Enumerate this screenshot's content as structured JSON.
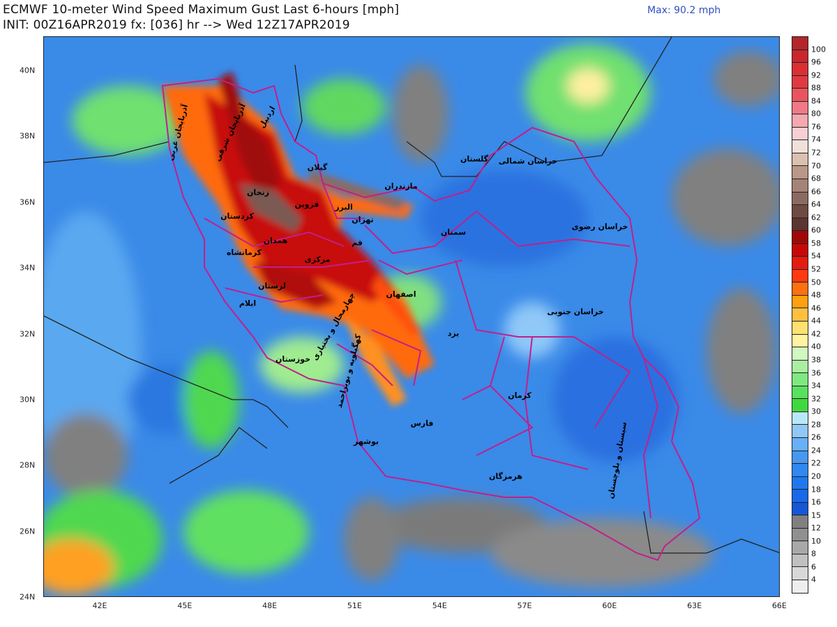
{
  "header": {
    "title": "ECMWF 10-meter Wind Speed Maximum Gust Last 6-hours [mph]",
    "subtitle": "INIT: 00Z16APR2019 fx: [036] hr --> Wed 12Z17APR2019",
    "max_label": "Max: 90.2 mph"
  },
  "map": {
    "type": "contour-fill",
    "variable": "10-meter wind speed maximum gust",
    "units": "mph",
    "region": "Iran",
    "lat_labels": [
      "40N",
      "38N",
      "36N",
      "34N",
      "32N",
      "30N",
      "28N",
      "26N",
      "24N"
    ],
    "lon_labels": [
      "42E",
      "45E",
      "48E",
      "51E",
      "54E",
      "57E",
      "60E",
      "63E",
      "66E"
    ],
    "provinces": [
      {
        "name": "آذربایجان غربی"
      },
      {
        "name": "آذربایجان شرقی"
      },
      {
        "name": "اردبیل"
      },
      {
        "name": "گیلان"
      },
      {
        "name": "زنجان"
      },
      {
        "name": "قزوین"
      },
      {
        "name": "مازندران"
      },
      {
        "name": "البرز"
      },
      {
        "name": "تهران"
      },
      {
        "name": "قم"
      },
      {
        "name": "کردستان"
      },
      {
        "name": "همدان"
      },
      {
        "name": "کرمانشاه"
      },
      {
        "name": "مرکزی"
      },
      {
        "name": "لرستان"
      },
      {
        "name": "ایلام"
      },
      {
        "name": "اصفهان"
      },
      {
        "name": "چهارمحال و بختیاری"
      },
      {
        "name": "کهگیلویه و بویراحمد"
      },
      {
        "name": "خوزستان"
      },
      {
        "name": "بوشهر"
      },
      {
        "name": "فارس"
      },
      {
        "name": "یزد"
      },
      {
        "name": "سمنان"
      },
      {
        "name": "گلستان"
      },
      {
        "name": "خراسان شمالی"
      },
      {
        "name": "خراسان رضوی"
      },
      {
        "name": "خراسان جنوبی"
      },
      {
        "name": "کرمان"
      },
      {
        "name": "هرمزگان"
      },
      {
        "name": "سیستان و بلوچستان"
      }
    ],
    "colors": {
      "border": "#c0208c",
      "coast": "#222222"
    }
  },
  "colorbar": {
    "labels": [
      "100",
      "96",
      "92",
      "88",
      "84",
      "80",
      "76",
      "74",
      "72",
      "70",
      "68",
      "66",
      "64",
      "62",
      "60",
      "58",
      "54",
      "52",
      "50",
      "48",
      "46",
      "44",
      "42",
      "40",
      "38",
      "36",
      "34",
      "32",
      "30",
      "28",
      "26",
      "24",
      "22",
      "20",
      "18",
      "16",
      "15",
      "12",
      "10",
      "8",
      "6",
      "4"
    ],
    "colors": [
      "#b3262a",
      "#c8282c",
      "#d93034",
      "#e03a40",
      "#e85560",
      "#ef7a85",
      "#f4a8b0",
      "#f8d0d4",
      "#efe0da",
      "#dcc0b0",
      "#b89888",
      "#a68278",
      "#8c6a60",
      "#6e4a42",
      "#5a3632",
      "#a00808",
      "#c80808",
      "#e51a10",
      "#ff3a10",
      "#ff7010",
      "#ffa010",
      "#ffc040",
      "#ffe070",
      "#fff4a0",
      "#d0f8c0",
      "#a8f0a0",
      "#80e880",
      "#58e060",
      "#40d840",
      "#b8e8f8",
      "#90c8f8",
      "#68b0f8",
      "#4898f0",
      "#3088f0",
      "#2078f0",
      "#1868e8",
      "#1458d8",
      "#808080",
      "#909090",
      "#a8a8a8",
      "#c0c0c0",
      "#d8d8d8",
      "#eeeeee"
    ]
  }
}
